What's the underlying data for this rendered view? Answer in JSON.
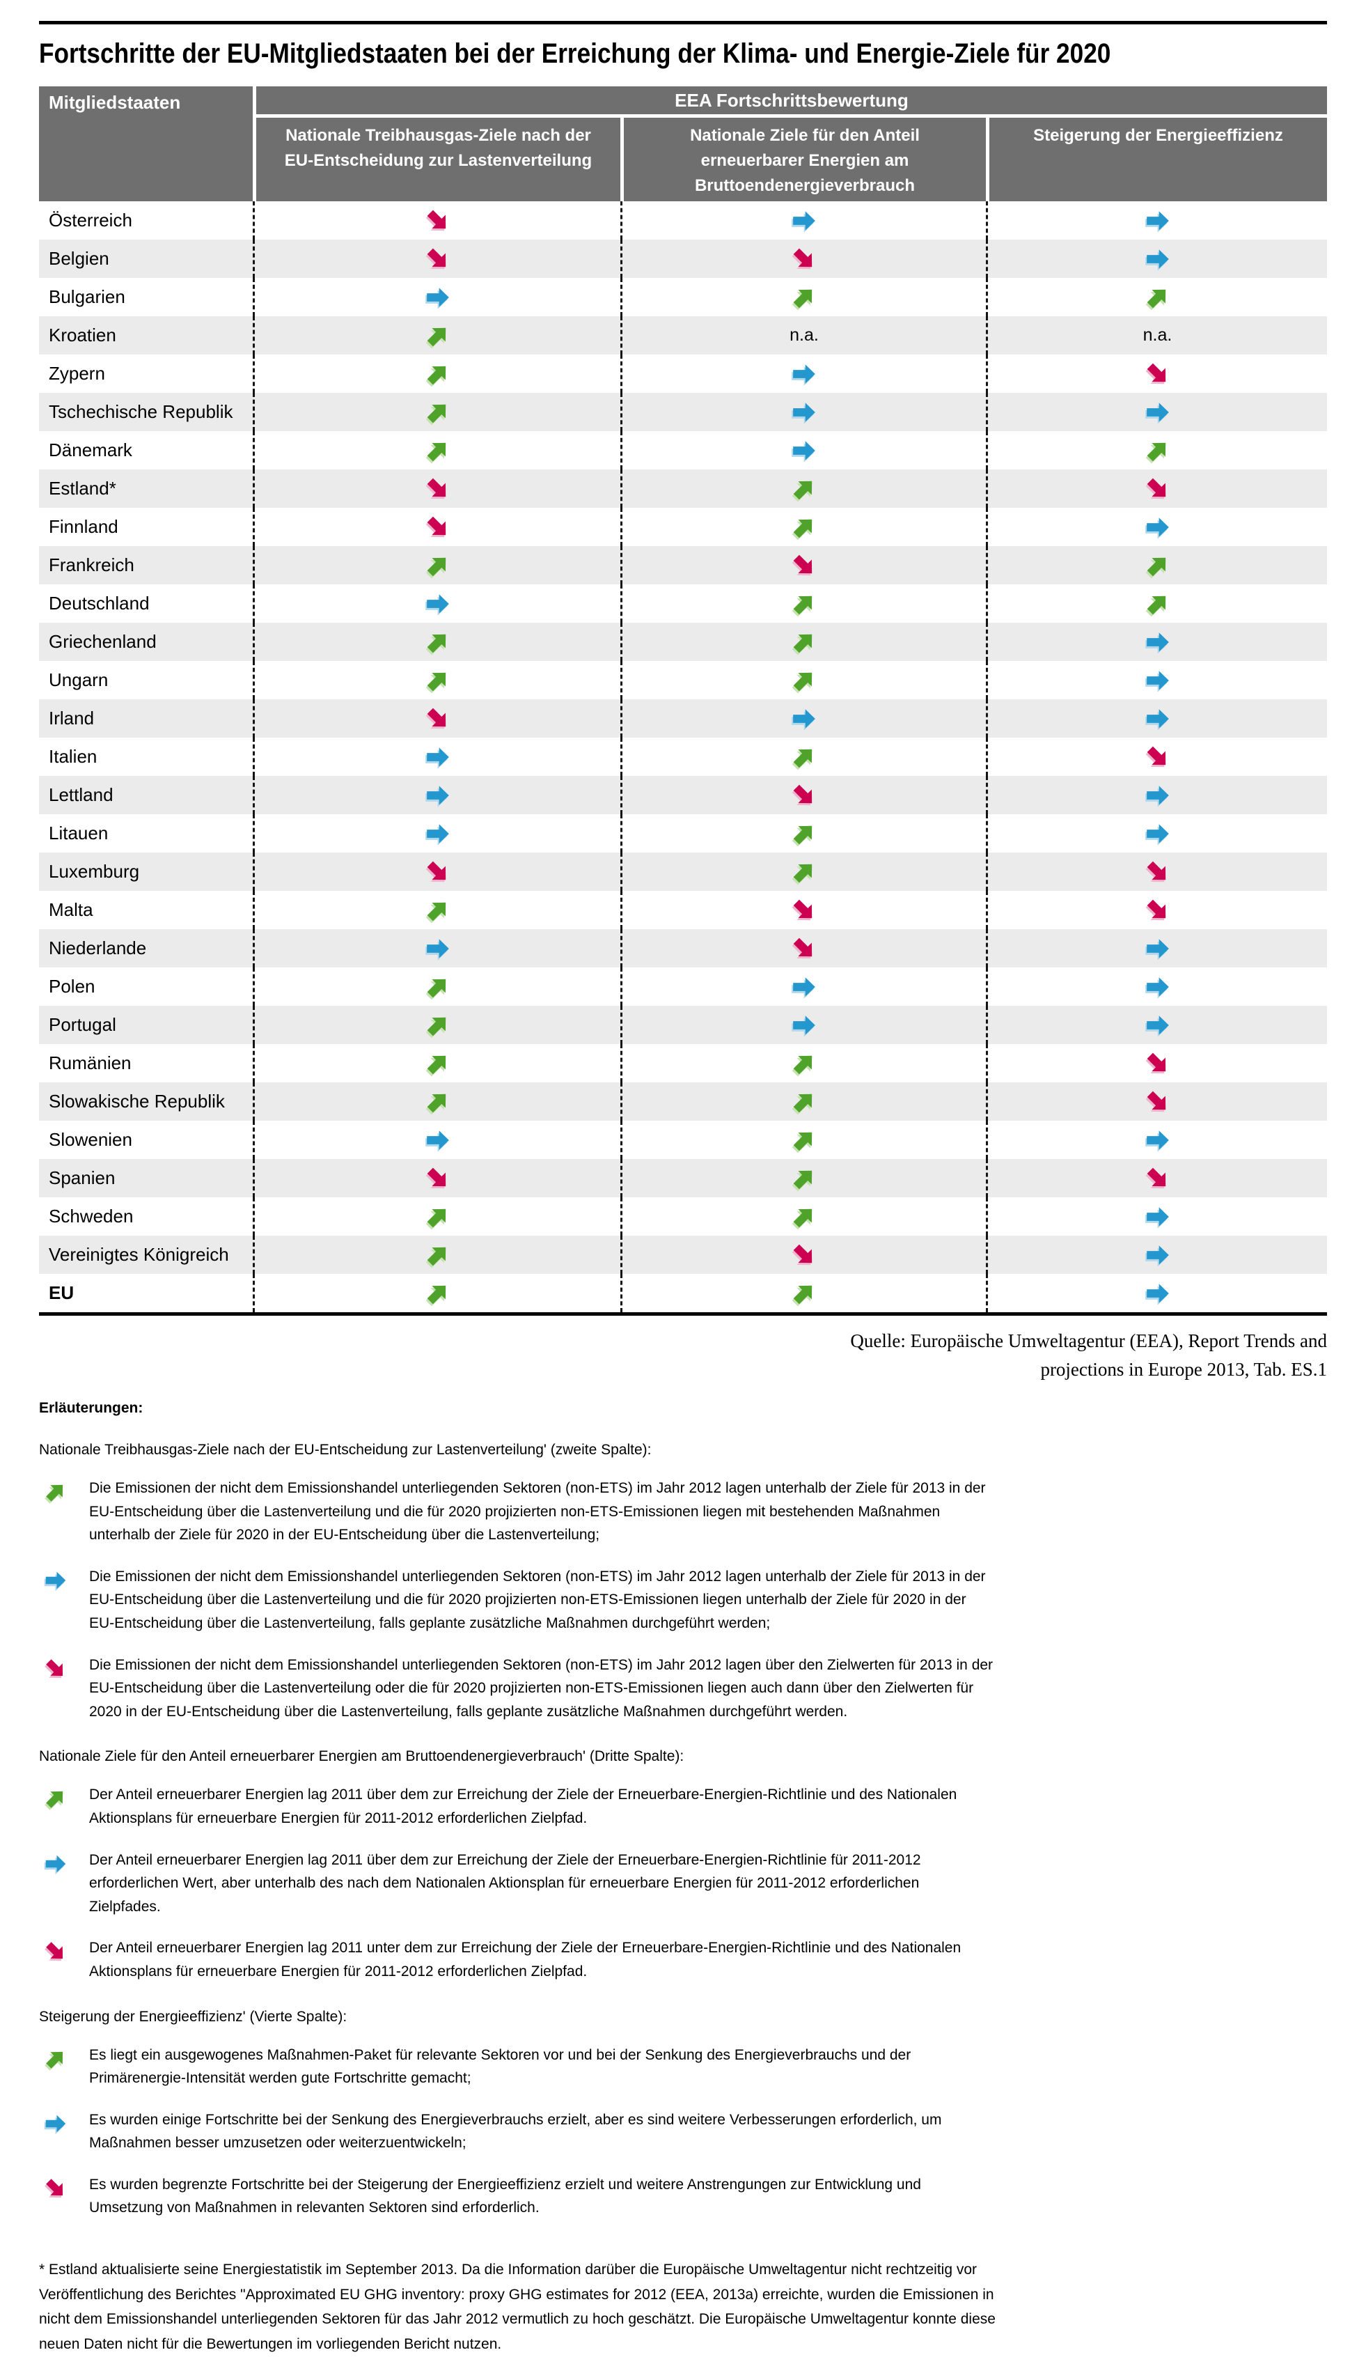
{
  "title": "Fortschritte der EU-Mitgliedstaaten bei der Erreichung der Klima- und Energie-Ziele für 2020",
  "colors": {
    "green": "#4FA32A",
    "blue": "#2397CE",
    "magenta": "#CC0152",
    "header_bg": "#6F6F6F",
    "row_alt": "#EBEBEB"
  },
  "icons": {
    "up": "arrow-up-right-icon",
    "right": "arrow-right-icon",
    "down": "arrow-down-right-icon"
  },
  "table": {
    "col1_header": "Mitgliedstaaten",
    "group_header": "EEA Fortschrittsbewertung",
    "col_headers": [
      "Nationale Treibhausgas-Ziele nach der EU-Entscheidung zur Lastenverteilung",
      "Nationale Ziele für den Anteil erneuerbarer Energien am Bruttoendenergieverbrauch",
      "Steigerung der Energieeffizienz"
    ],
    "na_label": "n.a.",
    "rows": [
      {
        "country": "Österreich",
        "values": [
          "down",
          "right",
          "right"
        ],
        "bold": false
      },
      {
        "country": "Belgien",
        "values": [
          "down",
          "down",
          "right"
        ],
        "bold": false
      },
      {
        "country": "Bulgarien",
        "values": [
          "right",
          "up",
          "up"
        ],
        "bold": false
      },
      {
        "country": "Kroatien",
        "values": [
          "up",
          "na",
          "na"
        ],
        "bold": false
      },
      {
        "country": "Zypern",
        "values": [
          "up",
          "right",
          "down"
        ],
        "bold": false
      },
      {
        "country": "Tschechische Republik",
        "values": [
          "up",
          "right",
          "right"
        ],
        "bold": false
      },
      {
        "country": "Dänemark",
        "values": [
          "up",
          "right",
          "up"
        ],
        "bold": false
      },
      {
        "country": "Estland*",
        "values": [
          "down",
          "up",
          "down"
        ],
        "bold": false
      },
      {
        "country": "Finnland",
        "values": [
          "down",
          "up",
          "right"
        ],
        "bold": false
      },
      {
        "country": "Frankreich",
        "values": [
          "up",
          "down",
          "up"
        ],
        "bold": false
      },
      {
        "country": "Deutschland",
        "values": [
          "right",
          "up",
          "up"
        ],
        "bold": false
      },
      {
        "country": "Griechenland",
        "values": [
          "up",
          "up",
          "right"
        ],
        "bold": false
      },
      {
        "country": "Ungarn",
        "values": [
          "up",
          "up",
          "right"
        ],
        "bold": false
      },
      {
        "country": "Irland",
        "values": [
          "down",
          "right",
          "right"
        ],
        "bold": false
      },
      {
        "country": "Italien",
        "values": [
          "right",
          "up",
          "down"
        ],
        "bold": false
      },
      {
        "country": "Lettland",
        "values": [
          "right",
          "down",
          "right"
        ],
        "bold": false
      },
      {
        "country": "Litauen",
        "values": [
          "right",
          "up",
          "right"
        ],
        "bold": false
      },
      {
        "country": "Luxemburg",
        "values": [
          "down",
          "up",
          "down"
        ],
        "bold": false
      },
      {
        "country": "Malta",
        "values": [
          "up",
          "down",
          "down"
        ],
        "bold": false
      },
      {
        "country": "Niederlande",
        "values": [
          "right",
          "down",
          "right"
        ],
        "bold": false
      },
      {
        "country": "Polen",
        "values": [
          "up",
          "right",
          "right"
        ],
        "bold": false
      },
      {
        "country": "Portugal",
        "values": [
          "up",
          "right",
          "right"
        ],
        "bold": false
      },
      {
        "country": "Rumänien",
        "values": [
          "up",
          "up",
          "down"
        ],
        "bold": false
      },
      {
        "country": "Slowakische Republik",
        "values": [
          "up",
          "up",
          "down"
        ],
        "bold": false
      },
      {
        "country": "Slowenien",
        "values": [
          "right",
          "up",
          "right"
        ],
        "bold": false
      },
      {
        "country": "Spanien",
        "values": [
          "down",
          "up",
          "down"
        ],
        "bold": false
      },
      {
        "country": "Schweden",
        "values": [
          "up",
          "up",
          "right"
        ],
        "bold": false
      },
      {
        "country": "Vereinigtes Königreich",
        "values": [
          "up",
          "down",
          "right"
        ],
        "bold": false
      },
      {
        "country": "EU",
        "values": [
          "up",
          "up",
          "right"
        ],
        "bold": true
      }
    ]
  },
  "source": {
    "line1": "Quelle: Europäische Umweltagentur (EEA), Report Trends and",
    "line2": "projections in Europe 2013, Tab. ES.1"
  },
  "legend": {
    "heading": "Erläuterungen:",
    "sections": [
      {
        "title": "Nationale Treibhausgas-Ziele nach der EU-Entscheidung zur Lastenverteilung' (zweite Spalte):",
        "items": [
          {
            "arrow": "up",
            "text": "Die Emissionen der nicht dem Emissionshandel unterliegenden Sektoren (non-ETS) im Jahr 2012 lagen unterhalb der Ziele für 2013 in der EU-Entscheidung über die Lastenverteilung und die für 2020 projizierten non-ETS-Emissionen liegen mit bestehenden Maßnahmen unterhalb der Ziele für 2020 in der EU-Entscheidung über die Lastenverteilung;"
          },
          {
            "arrow": "right",
            "text": "Die Emissionen der nicht dem Emissionshandel unterliegenden Sektoren (non-ETS) im Jahr 2012 lagen unterhalb der Ziele für 2013 in der EU-Entscheidung über die Lastenverteilung und die für 2020 projizierten non-ETS-Emissionen liegen unterhalb der Ziele für 2020 in der EU-Entscheidung über die Lastenverteilung, falls geplante zusätzliche Maßnahmen durchgeführt werden;"
          },
          {
            "arrow": "down",
            "text": "Die Emissionen der nicht dem Emissionshandel unterliegenden Sektoren (non-ETS) im Jahr 2012 lagen über den Zielwerten für 2013 in der EU-Entscheidung über die Lastenverteilung oder die für 2020 projizierten non-ETS-Emissionen liegen auch dann über den Zielwerten für 2020 in der EU-Entscheidung über die Lastenverteilung, falls geplante zusätzliche Maßnahmen durchgeführt werden."
          }
        ]
      },
      {
        "title": "Nationale Ziele für den Anteil erneuerbarer Energien am Bruttoendenergieverbrauch' (Dritte Spalte):",
        "items": [
          {
            "arrow": "up",
            "text": "Der Anteil erneuerbarer Energien lag 2011 über dem zur Erreichung der Ziele der Erneuerbare-Energien-Richtlinie und des Nationalen Aktionsplans für erneuerbare Energien für 2011-2012 erforderlichen Zielpfad."
          },
          {
            "arrow": "right",
            "text": "Der Anteil erneuerbarer Energien lag 2011 über dem zur Erreichung der Ziele der Erneuerbare-Energien-Richtlinie für 2011-2012 erforderlichen Wert, aber unterhalb des nach dem Nationalen Aktionsplan für erneuerbare Energien für 2011-2012 erforderlichen Zielpfades."
          },
          {
            "arrow": "down",
            "text": "Der Anteil erneuerbarer Energien lag 2011 unter dem zur Erreichung der Ziele der Erneuerbare-Energien-Richtlinie und des Nationalen Aktionsplans für erneuerbare Energien für 2011-2012 erforderlichen Zielpfad."
          }
        ]
      },
      {
        "title": "Steigerung der Energieeffizienz' (Vierte Spalte):",
        "items": [
          {
            "arrow": "up",
            "text": "Es liegt ein ausgewogenes Maßnahmen-Paket für relevante Sektoren vor und bei der Senkung des Energieverbrauchs und der Primärenergie-Intensität werden gute Fortschritte gemacht;"
          },
          {
            "arrow": "right",
            "text": "Es wurden einige Fortschritte bei der Senkung des Energieverbrauchs erzielt, aber es sind weitere Verbesserungen erforderlich, um Maßnahmen besser umzusetzen oder weiterzuentwickeln;"
          },
          {
            "arrow": "down",
            "text": "Es wurden begrenzte Fortschritte bei der Steigerung der Energieeffizienz erzielt und weitere Anstrengungen zur Entwicklung und Umsetzung von Maßnahmen in relevanten Sektoren sind erforderlich."
          }
        ]
      }
    ],
    "footnote": "* Estland aktualisierte seine Energiestatistik im September 2013. Da die Information darüber die Europäische Umweltagentur nicht rechtzeitig vor Veröffentlichung des Berichtes \"Approximated EU GHG inventory: proxy GHG estimates for 2012 (EEA, 2013a) erreichte, wurden die Emissionen in nicht dem Emissionshandel unterliegenden Sektoren für das Jahr 2012 vermutlich zu hoch geschätzt. Die Europäische Umweltagentur konnte diese neuen Daten nicht für die Bewertungen im vorliegenden Bericht nutzen."
  }
}
